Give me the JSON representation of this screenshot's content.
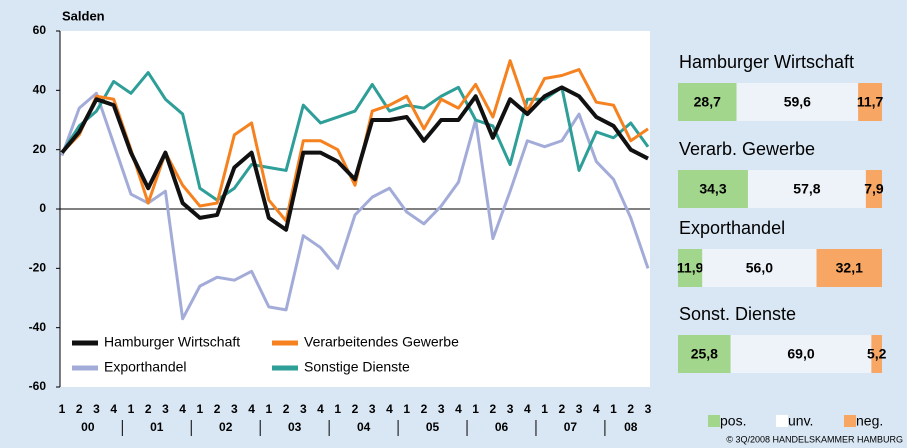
{
  "chart_data": [
    {
      "type": "line",
      "ylabel": "Salden",
      "categories": [
        "1",
        "2",
        "3",
        "4",
        "1",
        "2",
        "3",
        "4",
        "1",
        "2",
        "3",
        "4",
        "1",
        "2",
        "3",
        "4",
        "1",
        "2",
        "3",
        "4",
        "1",
        "2",
        "3",
        "4",
        "1",
        "2",
        "3",
        "4",
        "1",
        "2",
        "3",
        "4",
        "1",
        "2",
        "3"
      ],
      "years": [
        "00",
        "01",
        "02",
        "03",
        "04",
        "05",
        "06",
        "07",
        "08"
      ],
      "ylim": [
        -60,
        60
      ],
      "yticks": [
        60,
        40,
        20,
        0,
        -20,
        -40,
        -60
      ],
      "series": [
        {
          "name": "Hamburger Wirtschaft",
          "color": "#111111",
          "width": 4,
          "values": [
            19,
            26,
            37,
            35,
            19,
            7,
            19,
            2,
            -3,
            -2,
            14,
            19,
            -3,
            -7,
            19,
            19,
            16,
            10,
            30,
            30,
            31,
            23,
            30,
            30,
            38,
            24,
            37,
            32,
            38,
            41,
            38,
            31,
            28,
            20,
            17
          ]
        },
        {
          "name": "Verarbeitendes Gewerbe",
          "color": "#f5821f",
          "width": 3,
          "values": [
            19,
            25,
            38,
            37,
            20,
            2,
            19,
            8,
            1,
            2,
            25,
            29,
            3,
            -4,
            23,
            23,
            20,
            8,
            33,
            35,
            38,
            27,
            37,
            34,
            42,
            31,
            50,
            33,
            44,
            45,
            47,
            36,
            35,
            23,
            27
          ]
        },
        {
          "name": "Exporthandel",
          "color": "#a3acd9",
          "width": 3,
          "values": [
            18,
            34,
            39,
            22,
            5,
            2,
            6,
            -37,
            -26,
            -23,
            -24,
            -21,
            -33,
            -34,
            -9,
            -13,
            -20,
            -2,
            4,
            7,
            -1,
            -5,
            1,
            9,
            30,
            -10,
            6,
            23,
            21,
            23,
            32,
            16,
            10,
            -3,
            -20
          ]
        },
        {
          "name": "Sonstige Dienste",
          "color": "#2e9e98",
          "width": 3,
          "values": [
            19,
            28,
            33,
            43,
            39,
            46,
            37,
            32,
            7,
            3,
            7,
            15,
            14,
            13,
            35,
            29,
            31,
            33,
            42,
            33,
            35,
            34,
            38,
            41,
            30,
            28,
            15,
            37,
            37,
            41,
            13,
            26,
            24,
            29,
            21
          ]
        }
      ]
    },
    {
      "type": "stacked-bar",
      "categories": [
        "Hamburger Wirtschaft",
        "Verarb. Gewerbe",
        "Exporthandel",
        "Sonst. Dienste"
      ],
      "series": [
        {
          "name": "pos.",
          "color": "#a3d68d",
          "values": [
            28.7,
            34.3,
            11.9,
            25.8
          ],
          "value_labels": [
            "28,7",
            "34,3",
            "11,9",
            "25,8"
          ]
        },
        {
          "name": "unv.",
          "color": "#eef3f9",
          "values": [
            59.6,
            57.8,
            56.0,
            69.0
          ],
          "value_labels": [
            "59,6",
            "57,8",
            "56,0",
            "69,0"
          ]
        },
        {
          "name": "neg.",
          "color": "#f8a663",
          "values": [
            11.7,
            7.9,
            32.1,
            5.2
          ],
          "value_labels": [
            "11,7",
            "7,9",
            "32,1",
            "5,2"
          ]
        }
      ]
    }
  ],
  "footer": "© 3Q/2008 HANDELSKAMMER HAMBURG"
}
